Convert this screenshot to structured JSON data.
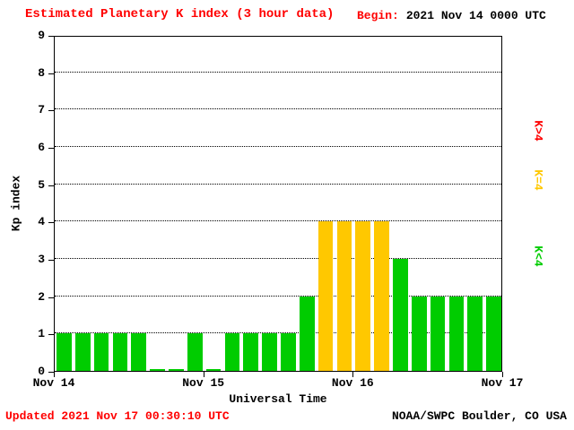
{
  "header": {
    "title": "Estimated Planetary K index (3 hour data)",
    "begin_label": "Begin:",
    "begin_value": "2021 Nov 14 0000 UTC"
  },
  "footer": {
    "updated": "Updated 2021 Nov 17 00:30:10 UTC",
    "source": "NOAA/SWPC Boulder, CO USA"
  },
  "legend": {
    "items": [
      {
        "label": "K>4",
        "color": "#ff0000"
      },
      {
        "label": "K=4",
        "color": "#ffc800"
      },
      {
        "label": "K<4",
        "color": "#00cc00"
      }
    ]
  },
  "chart_data": {
    "type": "bar",
    "title": "Estimated Planetary K index (3 hour data)",
    "xlabel": "Universal Time",
    "ylabel": "Kp index",
    "ylim": [
      0,
      9
    ],
    "y_ticks": [
      0,
      1,
      2,
      3,
      4,
      5,
      6,
      7,
      8,
      9
    ],
    "x_tick_labels": [
      "Nov 14",
      "Nov 15",
      "Nov 16",
      "Nov 17"
    ],
    "interval_hours": 3,
    "begin": "2021 Nov 14 0000 UTC",
    "values": [
      1,
      1,
      1,
      1,
      1,
      0,
      0,
      1,
      0,
      1,
      1,
      1,
      1,
      2,
      4,
      4,
      4,
      4,
      3,
      2,
      2,
      2,
      2,
      2
    ],
    "color_rules": {
      "below_4": "#00cc00",
      "equal_4": "#ffc800",
      "above_4": "#ff0000"
    },
    "grid": "horizontal dotted lines at integers 1-8",
    "legend_position": "right side, rotated 90deg"
  }
}
